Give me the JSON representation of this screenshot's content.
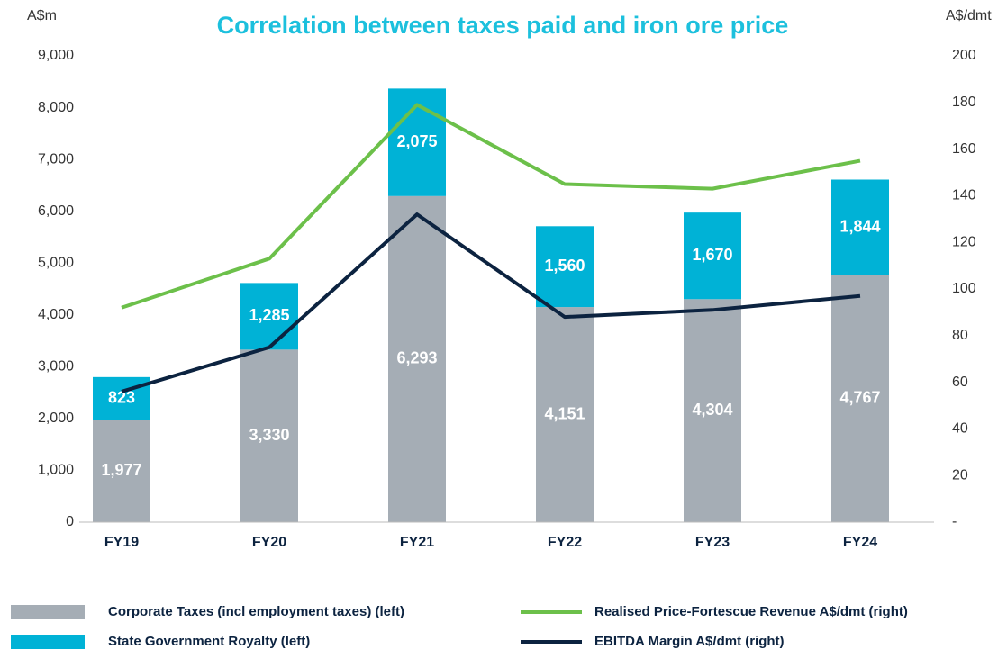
{
  "chart_data": {
    "type": "bar",
    "stacked": true,
    "title": "Correlation between taxes paid and iron ore price",
    "ylabel": "A$m",
    "y2label": "A$/dmt",
    "categories": [
      "FY19",
      "FY20",
      "FY21",
      "FY22",
      "FY23",
      "FY24"
    ],
    "series": [
      {
        "name": "Corporate Taxes (incl employment taxes) (left)",
        "type": "bar",
        "color": "#a5adb5",
        "values": [
          1977,
          3330,
          6293,
          4151,
          4304,
          4767
        ],
        "value_labels": [
          "1,977",
          "3,330",
          "6,293",
          "4,151",
          "4,304",
          "4,767"
        ]
      },
      {
        "name": "State Government Royalty (left)",
        "type": "bar",
        "color": "#00b2d6",
        "values": [
          823,
          1285,
          2075,
          1560,
          1670,
          1844
        ],
        "value_labels": [
          "823",
          "1,285",
          "2,075",
          "1,560",
          "1,670",
          "1,844"
        ]
      },
      {
        "name": "Realised Price-Fortescue Revenue A$/dmt (right)",
        "type": "line",
        "axis": "y2",
        "color": "#6cc04a",
        "values": [
          92,
          113,
          179,
          145,
          143,
          155
        ]
      },
      {
        "name": "EBITDA Margin A$/dmt (right)",
        "type": "line",
        "axis": "y2",
        "color": "#0c2340",
        "values": [
          56,
          75,
          132,
          88,
          91,
          97
        ]
      }
    ],
    "ylim": [
      0,
      9000
    ],
    "yticks": [
      0,
      {
        "value": 1000,
        "label": "1,000"
      },
      {
        "value": 2000,
        "label": "2,000"
      },
      {
        "value": 3000,
        "label": "3,000"
      },
      {
        "value": 4000,
        "label": "4,000"
      },
      {
        "value": 5000,
        "label": "5,000"
      },
      {
        "value": 6000,
        "label": "6,000"
      },
      {
        "value": 7000,
        "label": "7,000"
      },
      {
        "value": 8000,
        "label": "8,000"
      },
      {
        "value": 9000,
        "label": "9,000"
      }
    ],
    "y2lim": [
      0,
      200
    ],
    "y2ticks": [
      {
        "value": 0,
        "label": "-"
      },
      20,
      40,
      60,
      80,
      100,
      120,
      140,
      160,
      180,
      200
    ],
    "grid": false,
    "legend": "bottom"
  }
}
